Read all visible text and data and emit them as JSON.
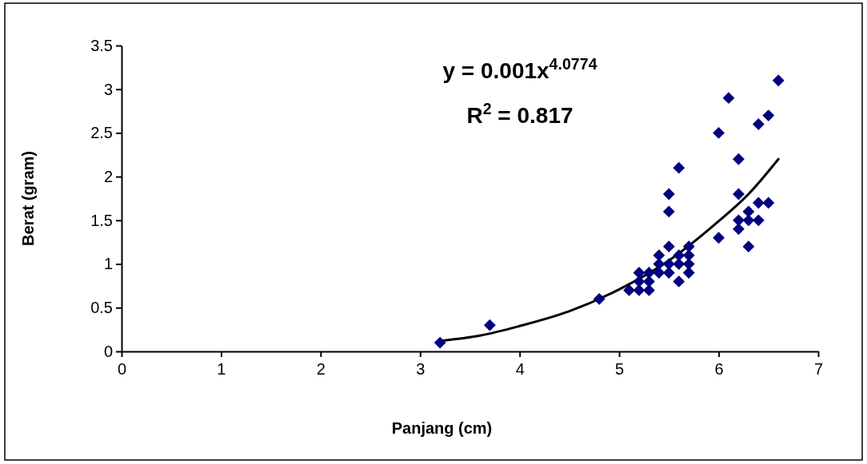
{
  "chart_data": {
    "type": "scatter",
    "xlabel": "Panjang (cm)",
    "ylabel": "Berat (gram)",
    "xlim": [
      0,
      7
    ],
    "xticks": [
      0,
      1,
      2,
      3,
      4,
      5,
      6,
      7
    ],
    "ylim": [
      0,
      3.5
    ],
    "yticks": [
      0,
      0.5,
      1,
      1.5,
      2,
      2.5,
      3,
      3.5
    ],
    "grid": false,
    "annotations": [
      "y = 0.001x$^{4.0774}$",
      "R$^{2}$ = 0.817"
    ],
    "series": [
      {
        "color": "#000080",
        "marker": "diamond",
        "x": [
          3.2,
          3.7,
          4.8,
          5.1,
          5.2,
          5.2,
          5.2,
          5.3,
          5.3,
          5.3,
          5.4,
          5.4,
          5.4,
          5.5,
          5.5,
          5.5,
          5.5,
          5.5,
          5.6,
          5.6,
          5.6,
          5.6,
          5.7,
          5.7,
          5.7,
          5.7,
          6.0,
          6.0,
          6.1,
          6.2,
          6.2,
          6.2,
          6.2,
          6.3,
          6.3,
          6.3,
          6.4,
          6.4,
          6.4,
          6.5,
          6.5,
          6.6
        ],
        "values": [
          0.1,
          0.3,
          0.6,
          0.7,
          0.7,
          0.8,
          0.9,
          0.7,
          0.8,
          0.9,
          0.9,
          1.0,
          1.1,
          0.9,
          1.0,
          1.2,
          1.6,
          1.8,
          0.8,
          1.0,
          1.1,
          2.1,
          0.9,
          1.0,
          1.1,
          1.2,
          1.3,
          2.5,
          2.9,
          1.4,
          1.5,
          1.8,
          2.2,
          1.2,
          1.5,
          1.6,
          1.5,
          1.7,
          2.6,
          1.7,
          2.7,
          3.1
        ]
      },
      {
        "type": "line",
        "color": "#000000",
        "line_style": "solid",
        "x": [
          3.2,
          3.6,
          4.0,
          4.5,
          5.0,
          5.5,
          6.0,
          6.3,
          6.6
        ],
        "values": [
          0.12,
          0.18,
          0.29,
          0.46,
          0.71,
          1.04,
          1.49,
          1.8,
          2.2
        ]
      }
    ]
  }
}
